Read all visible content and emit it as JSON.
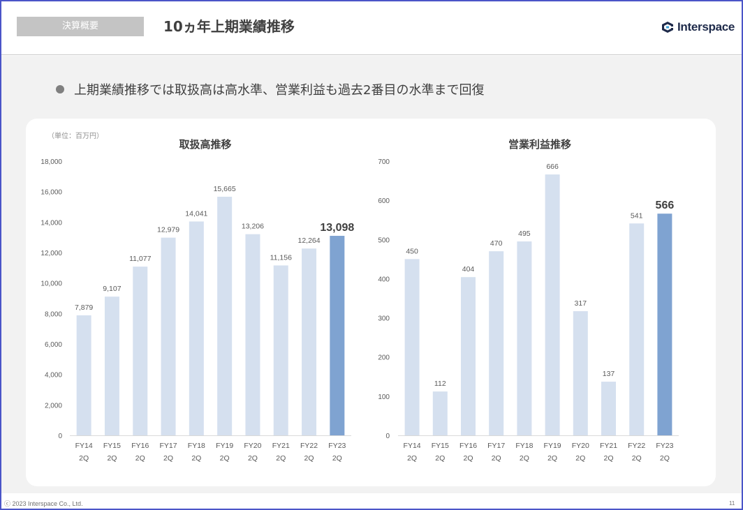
{
  "header": {
    "section_tag": "決算概要",
    "title": "10ヵ年上期業績推移",
    "logo_text": "Interspace"
  },
  "bullet": "上期業績推移では取扱高は高水準、営業利益も過去2番目の水準まで回復",
  "unit_label": "（単位：百万円）",
  "footer": {
    "copyright": "ⓒ 2023 Interspace Co., Ltd.",
    "page": "11"
  },
  "colors": {
    "bar": "#d5e0ef",
    "bar_highlight": "#7fa3d1",
    "axis": "#d9d9d9"
  },
  "chart_data": [
    {
      "type": "bar",
      "title": "取扱高推移",
      "categories": [
        "FY14 2Q",
        "FY15 2Q",
        "FY16 2Q",
        "FY17 2Q",
        "FY18 2Q",
        "FY19 2Q",
        "FY20 2Q",
        "FY21 2Q",
        "FY22 2Q",
        "FY23 2Q"
      ],
      "values": [
        7879,
        9107,
        11077,
        12979,
        14041,
        15665,
        13206,
        11156,
        12264,
        13098
      ],
      "value_labels": [
        "7,879",
        "9,107",
        "11,077",
        "12,979",
        "14,041",
        "15,665",
        "13,206",
        "11,156",
        "12,264",
        "13,098"
      ],
      "highlight_index": 9,
      "ylim": [
        0,
        18000
      ],
      "yticks": [
        0,
        2000,
        4000,
        6000,
        8000,
        10000,
        12000,
        14000,
        16000,
        18000
      ],
      "ytick_labels": [
        "0",
        "2,000",
        "4,000",
        "6,000",
        "8,000",
        "10,000",
        "12,000",
        "14,000",
        "16,000",
        "18,000"
      ],
      "grid": false
    },
    {
      "type": "bar",
      "title": "営業利益推移",
      "categories": [
        "FY14 2Q",
        "FY15 2Q",
        "FY16 2Q",
        "FY17 2Q",
        "FY18 2Q",
        "FY19 2Q",
        "FY20 2Q",
        "FY21 2Q",
        "FY22 2Q",
        "FY23 2Q"
      ],
      "values": [
        450,
        112,
        404,
        470,
        495,
        666,
        317,
        137,
        541,
        566
      ],
      "value_labels": [
        "450",
        "112",
        "404",
        "470",
        "495",
        "666",
        "317",
        "137",
        "541",
        "566"
      ],
      "highlight_index": 9,
      "ylim": [
        0,
        700
      ],
      "yticks": [
        0,
        100,
        200,
        300,
        400,
        500,
        600,
        700
      ],
      "ytick_labels": [
        "0",
        "100",
        "200",
        "300",
        "400",
        "500",
        "600",
        "700"
      ],
      "grid": false
    }
  ]
}
